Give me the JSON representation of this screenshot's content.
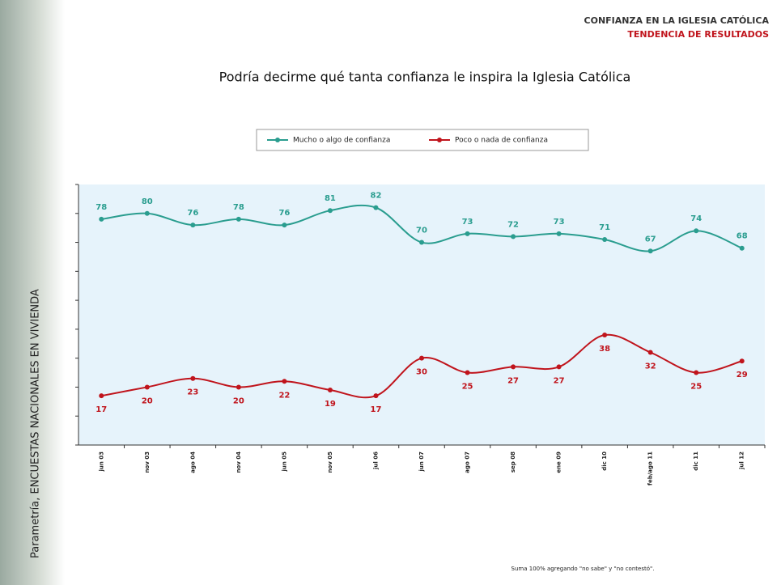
{
  "header": {
    "title": "CONFIANZA EN LA IGLESIA CATÓLICA",
    "subtitle": "TENDENCIA DE RESULTADOS"
  },
  "side_text": "Parametría, ENCUESTAS NACIONALES EN VIVIENDA",
  "footnote": "Suma 100% agregando \"no sabe\" y \"no contestó\".",
  "chart_data": {
    "type": "line",
    "title": "Podría decirme qué tanta confianza le inspira la Iglesia Católica",
    "categories": [
      "jun 03",
      "nov 03",
      "ago 04",
      "nov 04",
      "jun 05",
      "nov 05",
      "jul 06",
      "jun 07",
      "ago 07",
      "sep 08",
      "ene 09",
      "dic 10",
      "feb/ago 11",
      "dic 11",
      "jul 12"
    ],
    "series": [
      {
        "name": "Mucho o algo de confianza",
        "color": "#2a9d8f",
        "values": [
          78,
          80,
          76,
          78,
          76,
          81,
          82,
          70,
          73,
          72,
          73,
          71,
          67,
          74,
          68
        ]
      },
      {
        "name": "Poco o nada de confianza",
        "color": "#c0141c",
        "values": [
          17,
          20,
          23,
          20,
          22,
          19,
          17,
          30,
          25,
          27,
          27,
          38,
          32,
          25,
          29
        ]
      }
    ],
    "ylim": [
      0,
      90
    ],
    "yticks": [
      0,
      10,
      20,
      30,
      40,
      50,
      60,
      70,
      80,
      90
    ],
    "legend": "top"
  }
}
